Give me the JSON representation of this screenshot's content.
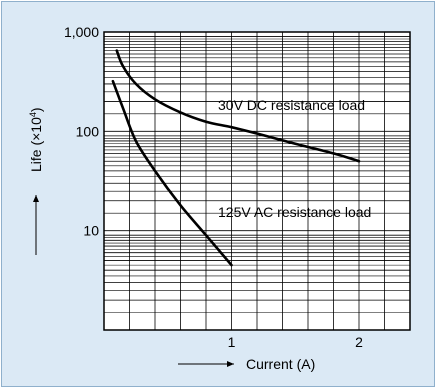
{
  "chart_data": {
    "type": "line",
    "xlabel": "Current (A)",
    "ylabel_main": "Life (×10",
    "ylabel_exp": "4",
    "ylabel_close": ")",
    "y_scale": "log",
    "xlim": [
      0,
      2.4
    ],
    "ylim": [
      1,
      1000
    ],
    "x_ticks": [
      {
        "v": 1,
        "label": "1"
      },
      {
        "v": 2,
        "label": "2"
      }
    ],
    "y_ticks": [
      {
        "v": 10,
        "label": "10"
      },
      {
        "v": 100,
        "label": "100"
      },
      {
        "v": 1000,
        "label": "1,000"
      }
    ],
    "grid": true,
    "series": [
      {
        "name": "30V DC resistance load",
        "x": [
          0.1,
          0.15,
          0.25,
          0.4,
          0.6,
          0.8,
          1.0,
          1.2,
          1.5,
          1.8,
          2.0
        ],
        "y": [
          650,
          450,
          300,
          210,
          155,
          125,
          110,
          95,
          75,
          60,
          50
        ]
      },
      {
        "name": "125V AC resistance load",
        "x": [
          0.07,
          0.15,
          0.25,
          0.4,
          0.6,
          0.8,
          1.0
        ],
        "y": [
          320,
          170,
          80,
          40,
          18,
          9,
          4.5
        ]
      }
    ]
  },
  "colors": {
    "panel": "#dbe9f5",
    "plot": "#ffffff",
    "line": "#000000"
  }
}
